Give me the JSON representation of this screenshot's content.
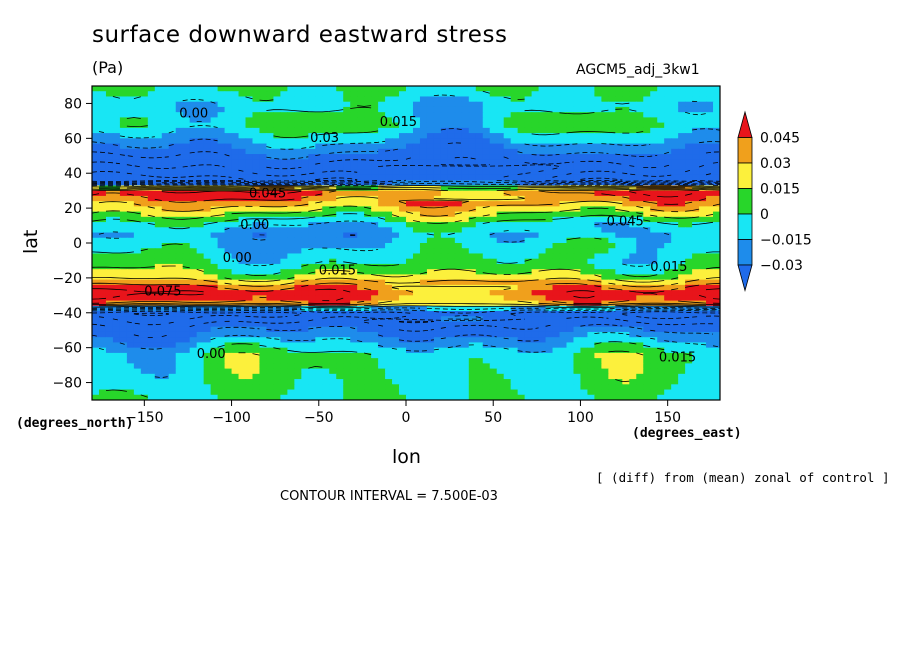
{
  "chart_data": {
    "type": "heatmap",
    "title": "surface downward eastward stress",
    "units": "(Pa)",
    "run_label": "AGCM5_adj_3kw1",
    "xlabel": "lon",
    "ylabel": "lat",
    "x_units": "(degrees_east)",
    "y_units": "(degrees_north)",
    "xlim": [
      -180,
      180
    ],
    "ylim": [
      -90,
      90
    ],
    "x_ticks": [
      -150,
      -100,
      -50,
      0,
      50,
      100,
      150
    ],
    "y_ticks": [
      80,
      60,
      40,
      20,
      0,
      -20,
      -40,
      -60,
      -80
    ],
    "x_tick_labels": [
      "−150",
      "−100",
      "−50",
      "0",
      "50",
      "100",
      "150"
    ],
    "y_tick_labels": [
      "80",
      "60",
      "40",
      "20",
      "0",
      "−20",
      "−40",
      "−60",
      "−80"
    ],
    "colorbar": {
      "levels": [
        0.045,
        0.03,
        0.015,
        0,
        -0.015,
        -0.03
      ],
      "labels": [
        "0.045",
        "0.03",
        "0.015",
        "0",
        "−0.015",
        "−0.03"
      ],
      "colors": [
        "#e8141b",
        "#f0a01c",
        "#fcf03c",
        "#28d62a",
        "#18e6f4",
        "#1e8ceb",
        "#1f6bea"
      ]
    },
    "bands_by_latitude": [
      {
        "lat": 88,
        "value": 0.0
      },
      {
        "lat": 78,
        "value": -0.01
      },
      {
        "lat": 68,
        "value": 0.0
      },
      {
        "lat": 58,
        "value": -0.02
      },
      {
        "lat": 50,
        "value": -0.04
      },
      {
        "lat": 42,
        "value": -0.06
      },
      {
        "lat": 36,
        "value": -0.08
      },
      {
        "lat": 30,
        "value": 0.06
      },
      {
        "lat": 24,
        "value": 0.04
      },
      {
        "lat": 18,
        "value": 0.02
      },
      {
        "lat": 10,
        "value": -0.01
      },
      {
        "lat": 4,
        "value": -0.02
      },
      {
        "lat": -4,
        "value": -0.01
      },
      {
        "lat": -12,
        "value": 0.0
      },
      {
        "lat": -20,
        "value": 0.02
      },
      {
        "lat": -28,
        "value": 0.06
      },
      {
        "lat": -34,
        "value": 0.05
      },
      {
        "lat": -40,
        "value": -0.07
      },
      {
        "lat": -48,
        "value": -0.04
      },
      {
        "lat": -56,
        "value": -0.02
      },
      {
        "lat": -64,
        "value": 0.0
      },
      {
        "lat": -76,
        "value": 0.0
      },
      {
        "lat": -88,
        "value": 0.0
      }
    ],
    "contour_labels": [
      "0.00",
      "0.015",
      "0.03",
      "0.045",
      "0.075",
      "0.00",
      "0.015",
      "0.045",
      "0.00",
      "0.015",
      "0.00",
      "0.015"
    ],
    "contour_interval_text": "CONTOUR INTERVAL = 7.500E-03",
    "note": "[ (diff) from (mean) zonal of control ]"
  }
}
